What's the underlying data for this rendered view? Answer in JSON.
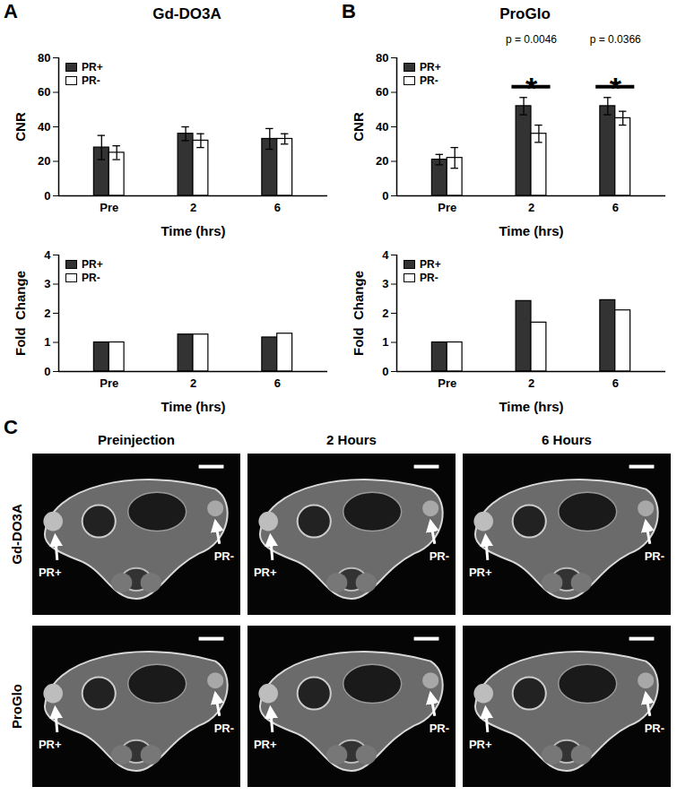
{
  "chart_data": [
    {
      "panel": "A",
      "title": "Gd-DO3A",
      "type": "bar",
      "x_label": "Time (hrs)",
      "y_label": "CNR",
      "categories": [
        "Pre",
        "2",
        "6"
      ],
      "series": [
        {
          "name": "PR+",
          "color": "#333333",
          "values": [
            28,
            36,
            33
          ],
          "errors": [
            7,
            4,
            6
          ]
        },
        {
          "name": "PR-",
          "color": "#ffffff",
          "values": [
            25,
            32,
            33
          ],
          "errors": [
            4,
            4,
            3
          ]
        }
      ],
      "ylim": [
        0,
        80
      ],
      "yticks": [
        0,
        20,
        40,
        60,
        80
      ],
      "legend": "upper left"
    },
    {
      "type": "bar",
      "x_label": "Time (hrs)",
      "y_label": "Fold  Change",
      "categories": [
        "Pre",
        "2",
        "6"
      ],
      "series": [
        {
          "name": "PR+",
          "color": "#333333",
          "values": [
            1,
            1.27,
            1.17
          ]
        },
        {
          "name": "PR-",
          "color": "#ffffff",
          "values": [
            1,
            1.27,
            1.3
          ]
        }
      ],
      "ylim": [
        0,
        4
      ],
      "yticks": [
        0,
        1,
        2,
        3,
        4
      ],
      "legend": "upper left"
    },
    {
      "panel": "B",
      "title": "ProGlo",
      "type": "bar",
      "x_label": "Time (hrs)",
      "y_label": "CNR",
      "categories": [
        "Pre",
        "2",
        "6"
      ],
      "series": [
        {
          "name": "PR+",
          "color": "#333333",
          "values": [
            21,
            52,
            52
          ],
          "errors": [
            3,
            5,
            5
          ]
        },
        {
          "name": "PR-",
          "color": "#ffffff",
          "values": [
            22,
            36,
            45
          ],
          "errors": [
            6,
            5,
            4
          ]
        }
      ],
      "ylim": [
        0,
        80
      ],
      "yticks": [
        0,
        20,
        40,
        60,
        80
      ],
      "legend": "upper left",
      "annotations": [
        {
          "category": "2",
          "text": "*",
          "label": "p = 0.0046"
        },
        {
          "category": "6",
          "text": "*",
          "label": "p = 0.0366"
        }
      ]
    },
    {
      "type": "bar",
      "x_label": "Time (hrs)",
      "y_label": "Fold  Change",
      "categories": [
        "Pre",
        "2",
        "6"
      ],
      "series": [
        {
          "name": "PR+",
          "color": "#333333",
          "values": [
            1,
            2.42,
            2.45
          ]
        },
        {
          "name": "PR-",
          "color": "#ffffff",
          "values": [
            1,
            1.68,
            2.1
          ]
        }
      ],
      "ylim": [
        0,
        4
      ],
      "yticks": [
        0,
        1,
        2,
        3,
        4
      ],
      "legend": "upper left"
    }
  ],
  "image_panel": {
    "panel": "C",
    "columns": [
      "Preinjection",
      "2 Hours",
      "6 Hours"
    ],
    "rows": [
      "Gd-DO3A",
      "ProGlo"
    ],
    "markers": [
      "PR+",
      "PR-"
    ]
  }
}
